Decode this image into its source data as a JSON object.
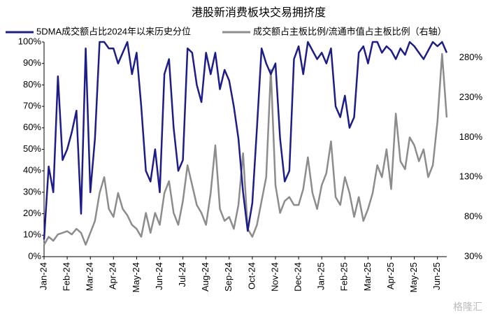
{
  "chart_data": {
    "type": "line",
    "title": "港股新消费板块交易拥挤度",
    "watermark": "格隆汇",
    "categories": [
      "Jan-24",
      null,
      null,
      null,
      null,
      "Feb-24",
      null,
      null,
      null,
      null,
      "Mar-24",
      null,
      null,
      null,
      null,
      "Apr-24",
      null,
      null,
      null,
      null,
      "May-24",
      null,
      null,
      null,
      null,
      "Jun-24",
      null,
      null,
      null,
      null,
      "Jul-24",
      null,
      null,
      null,
      null,
      "Aug-24",
      null,
      null,
      null,
      null,
      "Sep-24",
      null,
      null,
      null,
      null,
      "Oct-24",
      null,
      null,
      null,
      null,
      "Nov-24",
      null,
      null,
      null,
      null,
      "Dec-24",
      null,
      null,
      null,
      null,
      "Jan-25",
      null,
      null,
      null,
      null,
      "Feb-25",
      null,
      null,
      null,
      null,
      "Mar-25",
      null,
      null,
      null,
      null,
      "Apr-25",
      null,
      null,
      null,
      null,
      "May-25",
      null,
      null,
      null,
      null,
      "Jun-25",
      null,
      null
    ],
    "series": [
      {
        "name": "5DMA成交额占比2024年以来历史分位",
        "color": "#1c1c8a",
        "values": [
          8,
          42,
          30,
          84,
          45,
          50,
          58,
          68,
          20,
          97,
          30,
          55,
          100,
          100,
          97,
          97,
          90,
          95,
          100,
          85,
          95,
          70,
          40,
          35,
          50,
          30,
          85,
          92,
          60,
          40,
          45,
          97,
          95,
          80,
          72,
          95,
          85,
          95,
          78,
          87,
          82,
          70,
          55,
          30,
          12,
          25,
          60,
          97,
          90,
          85,
          90,
          55,
          35,
          40,
          92,
          98,
          85,
          100,
          96,
          92,
          95,
          90,
          97,
          70,
          65,
          75,
          60,
          65,
          95,
          98,
          90,
          100,
          100,
          95,
          98,
          96,
          92,
          97,
          94,
          100,
          98,
          95,
          92,
          96,
          100,
          98,
          100,
          95
        ]
      },
      {
        "name": "成交额占主板比例/流通市值占主板比例（右轴）",
        "color": "#8c8c8c",
        "axis": "y2",
        "values": [
          45,
          55,
          50,
          58,
          60,
          62,
          58,
          65,
          60,
          45,
          60,
          75,
          110,
          130,
          90,
          80,
          110,
          90,
          82,
          70,
          65,
          55,
          85,
          60,
          85,
          70,
          110,
          125,
          85,
          70,
          100,
          145,
          120,
          95,
          85,
          70,
          110,
          170,
          90,
          75,
          80,
          65,
          95,
          160,
          65,
          55,
          70,
          100,
          130,
          265,
          120,
          85,
          100,
          105,
          95,
          95,
          115,
          155,
          110,
          90,
          120,
          135,
          175,
          105,
          95,
          130,
          110,
          80,
          105,
          75,
          90,
          110,
          145,
          130,
          165,
          115,
          210,
          150,
          140,
          180,
          170,
          150,
          165,
          130,
          145,
          200,
          285,
          205
        ]
      }
    ],
    "ylim": [
      0,
      100
    ],
    "yticks": [
      {
        "value": 0,
        "label": "0%"
      },
      {
        "value": 10,
        "label": "10%"
      },
      {
        "value": 20,
        "label": "20%"
      },
      {
        "value": 30,
        "label": "30%"
      },
      {
        "value": 40,
        "label": "40%"
      },
      {
        "value": 50,
        "label": "50%"
      },
      {
        "value": 60,
        "label": "60%"
      },
      {
        "value": 70,
        "label": "70%"
      },
      {
        "value": 80,
        "label": "80%"
      },
      {
        "value": 90,
        "label": "90%"
      },
      {
        "value": 100,
        "label": "100%"
      }
    ],
    "y2lim": [
      30,
      300
    ],
    "y2ticks": [
      {
        "value": 30,
        "label": "30%"
      },
      {
        "value": 80,
        "label": "80%"
      },
      {
        "value": 130,
        "label": "130%"
      },
      {
        "value": 180,
        "label": "180%"
      },
      {
        "value": 230,
        "label": "230%"
      },
      {
        "value": 280,
        "label": "280%"
      }
    ],
    "grid": false
  }
}
